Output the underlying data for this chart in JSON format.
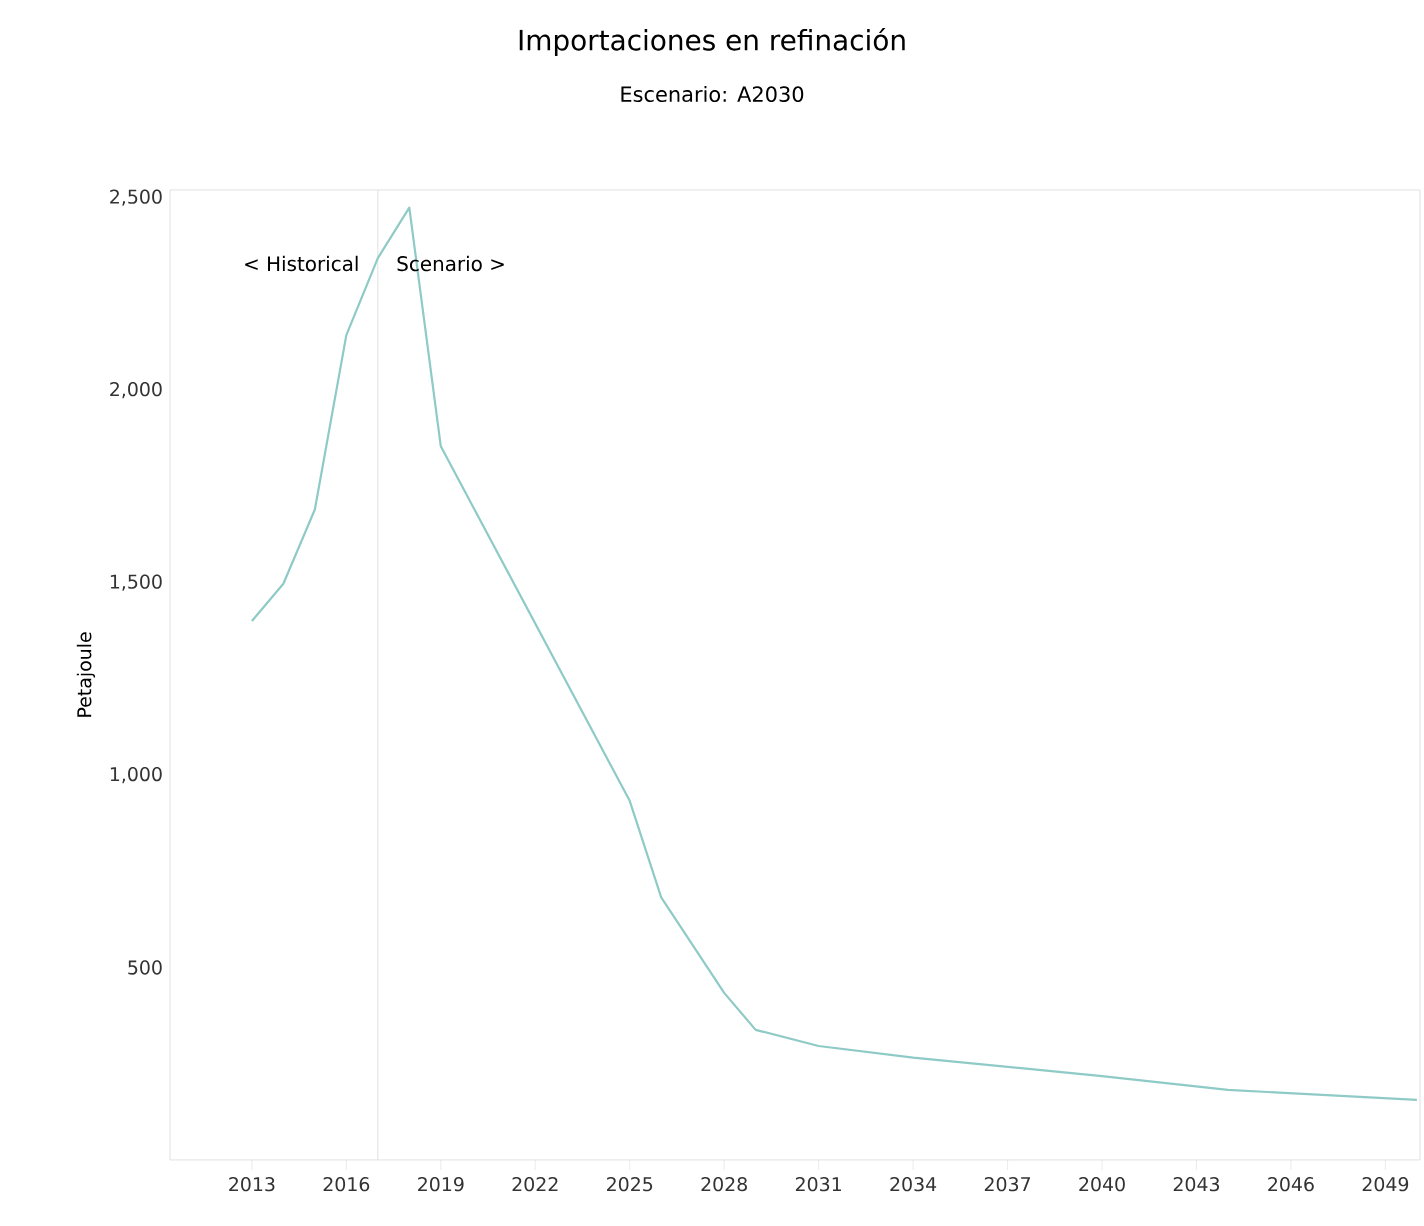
{
  "chart_data": {
    "type": "line",
    "title": "Importaciones en refinación",
    "subtitle": "Escenario: A2030",
    "ylabel": "Petajoule",
    "x": [
      2013,
      2014,
      2015,
      2016,
      2017,
      2018,
      2019,
      2025,
      2026,
      2028,
      2029,
      2031,
      2034,
      2040,
      2044,
      2050
    ],
    "values": [
      1400,
      1497,
      1690,
      2143,
      2343,
      2474,
      1854,
      933,
      682,
      434,
      338,
      296,
      266,
      218,
      182,
      156
    ],
    "color": "#8ecac6",
    "xlim": [
      2010.4,
      2050.1
    ],
    "ylim": [
      0,
      2520
    ],
    "xticks": [
      2013,
      2016,
      2019,
      2022,
      2025,
      2028,
      2031,
      2034,
      2037,
      2040,
      2043,
      2046,
      2049
    ],
    "yticks": [
      {
        "value": 500,
        "label": "500"
      },
      {
        "value": 1000,
        "label": "1,000"
      },
      {
        "value": 1500,
        "label": "1,500"
      },
      {
        "value": 2000,
        "label": "2,000"
      },
      {
        "value": 2500,
        "label": "2,500"
      }
    ],
    "ref_lines": [
      {
        "axis": "x",
        "value": 2017,
        "color": "#d9d9d9"
      }
    ],
    "annotations": [
      {
        "text": "< Historical",
        "x": 2017,
        "y": 2329
      },
      {
        "text": "Scenario >",
        "x": 2017,
        "y": 2329
      }
    ]
  }
}
